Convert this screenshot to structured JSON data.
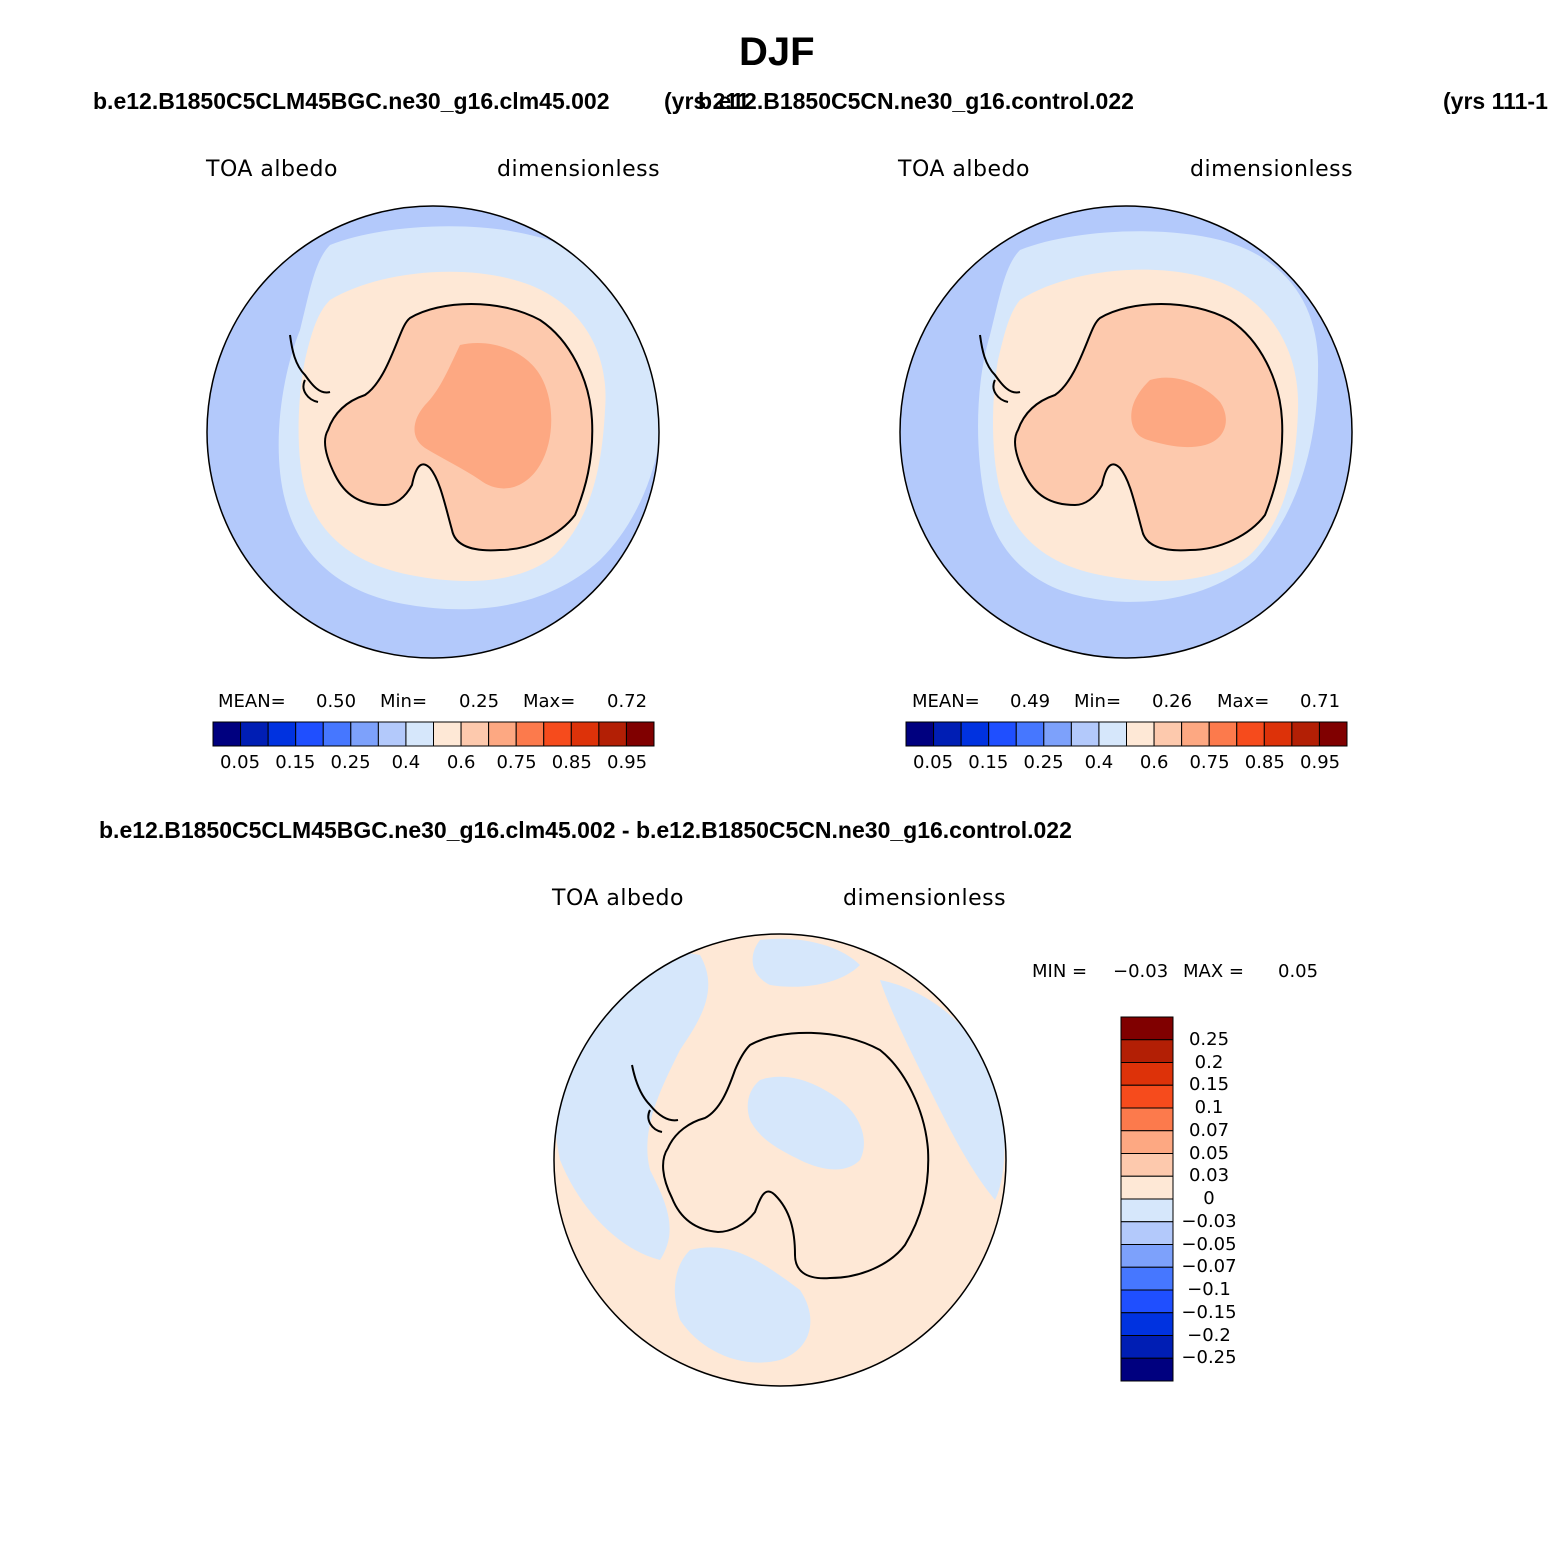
{
  "figure": {
    "title": "DJF",
    "case_a": "b.e12.B1850C5CLM45BGC.ne30_g16.clm45.002",
    "case_a_years": "(yrs 211",
    "case_b": "b.e12.B1850C5CN.ne30_g16.control.022",
    "case_b_years": "(yrs 111-1",
    "diff_title": "b.e12.B1850C5CLM45BGC.ne30_g16.clm45.002 - b.e12.B1850C5CN.ne30_g16.control.022"
  },
  "panels": [
    {
      "variable": "TOA albedo",
      "units": "dimensionless",
      "stats": {
        "mean_label": "MEAN=",
        "mean": "0.50",
        "min_label": "Min=",
        "min": "0.25",
        "max_label": "Max=",
        "max": "0.72"
      },
      "colorbar_ticks": [
        "0.05",
        "0.15",
        "0.25",
        "0.4",
        "0.6",
        "0.75",
        "0.85",
        "0.95"
      ]
    },
    {
      "variable": "TOA albedo",
      "units": "dimensionless",
      "stats": {
        "mean_label": "MEAN=",
        "mean": "0.49",
        "min_label": "Min=",
        "min": "0.26",
        "max_label": "Max=",
        "max": "0.71"
      },
      "colorbar_ticks": [
        "0.05",
        "0.15",
        "0.25",
        "0.4",
        "0.6",
        "0.75",
        "0.85",
        "0.95"
      ]
    },
    {
      "variable": "TOA albedo",
      "units": "dimensionless",
      "stats": {
        "min_label": "MIN =",
        "min": "−0.03",
        "max_label": "MAX =",
        "max": "0.05"
      },
      "colorbar_ticks": [
        "0.25",
        "0.2",
        "0.15",
        "0.1",
        "0.07",
        "0.05",
        "0.03",
        "0",
        "−0.03",
        "−0.05",
        "−0.07",
        "−0.1",
        "−0.15",
        "−0.2",
        "−0.25"
      ]
    }
  ],
  "colors": {
    "seq_palette": [
      "#00007f",
      "#001eb4",
      "#0032e0",
      "#1f4fff",
      "#4677ff",
      "#7da1fb",
      "#b3c9fb",
      "#d6e7fb",
      "#fee8d6",
      "#fdc9ad",
      "#fda882",
      "#fc7a4c",
      "#f64b1c",
      "#dd3209",
      "#b31f05",
      "#800000"
    ],
    "ocean_outer": "#b3c9fb",
    "ocean_inner": "#d6e7fb",
    "seaice_band": "#fee8d6",
    "continent": "#fdc9ad",
    "plateau": "#fda882",
    "diff_positive": "#fee8d6",
    "diff_negative": "#d6e7fb"
  },
  "chart_data": [
    {
      "type": "heatmap",
      "projection": "south polar stereographic",
      "title": "TOA albedo",
      "units": "dimensionless",
      "mean": 0.5,
      "min": 0.25,
      "max": 0.72,
      "levels": [
        0.05,
        0.1,
        0.15,
        0.2,
        0.25,
        0.3,
        0.4,
        0.5,
        0.6,
        0.65,
        0.7,
        0.75,
        0.8,
        0.85,
        0.9,
        0.95
      ]
    },
    {
      "type": "heatmap",
      "projection": "south polar stereographic",
      "title": "TOA albedo",
      "units": "dimensionless",
      "mean": 0.49,
      "min": 0.26,
      "max": 0.71,
      "levels": [
        0.05,
        0.1,
        0.15,
        0.2,
        0.25,
        0.3,
        0.4,
        0.5,
        0.6,
        0.65,
        0.7,
        0.75,
        0.8,
        0.85,
        0.9,
        0.95
      ]
    },
    {
      "type": "heatmap",
      "projection": "south polar stereographic",
      "title": "TOA albedo",
      "units": "dimensionless",
      "min": -0.03,
      "max": 0.05,
      "levels": [
        -0.25,
        -0.2,
        -0.15,
        -0.1,
        -0.07,
        -0.05,
        -0.03,
        0,
        0.03,
        0.05,
        0.07,
        0.1,
        0.15,
        0.2,
        0.25
      ]
    }
  ]
}
